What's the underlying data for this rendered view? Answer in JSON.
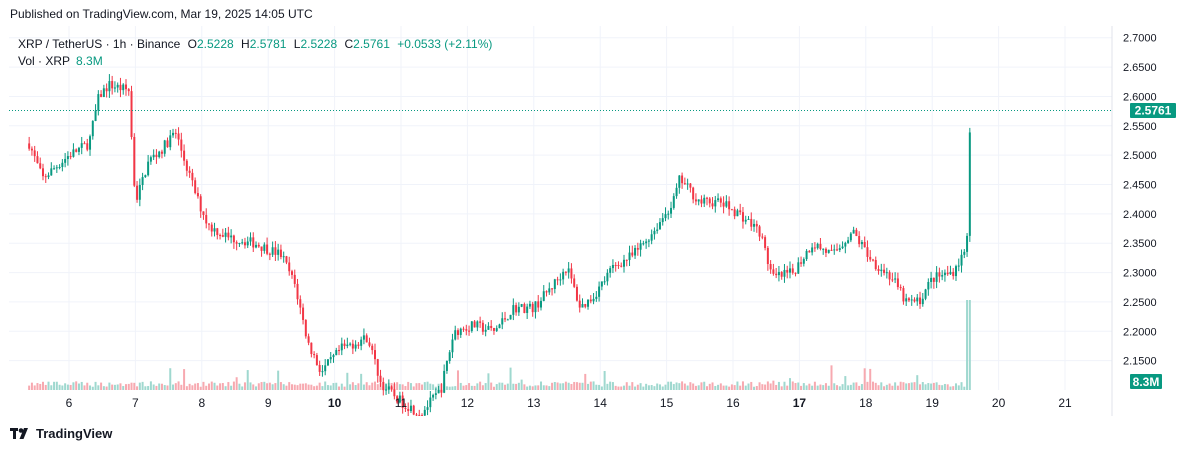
{
  "header": {
    "published": "Published on TradingView.com, Mar 19, 2025 14:05 UTC"
  },
  "legend": {
    "symbol": "XRP / TetherUS · 1h · Binance",
    "o_label": "O",
    "o_value": "2.5228",
    "h_label": "H",
    "h_value": "2.5781",
    "l_label": "L",
    "l_value": "2.5228",
    "c_label": "C",
    "c_value": "2.5761",
    "change": "+0.0533 (+2.11%)",
    "vol_label": "Vol · XRP",
    "vol_value": "8.3M"
  },
  "footer": {
    "brand": "TradingView"
  },
  "colors": {
    "up": "#089981",
    "down": "#f23645",
    "up_vol": "#9fd8cf",
    "down_vol": "#f7a9b0",
    "grid": "#f0f3fa",
    "text": "#131722"
  },
  "chart_data": {
    "type": "candlestick",
    "interval": "1h",
    "y_axis": {
      "side": "right",
      "min": 2.1,
      "max": 2.72,
      "ticks": [
        "2.1500",
        "2.2000",
        "2.2500",
        "2.3000",
        "2.3500",
        "2.4000",
        "2.4500",
        "2.5000",
        "2.5500",
        "2.6000",
        "2.6500",
        "2.7000"
      ]
    },
    "x_axis": {
      "ticks": [
        "6",
        "7",
        "8",
        "9",
        "10",
        "11",
        "12",
        "13",
        "14",
        "15",
        "16",
        "17",
        "18",
        "19",
        "20",
        "21"
      ],
      "bold_ticks": [
        "10",
        "17"
      ],
      "day_start": 5.4,
      "day_end": 21.7
    },
    "last_price": "2.5761",
    "last_volume": "8.3M",
    "price_path": [
      [
        5.4,
        2.52
      ],
      [
        5.6,
        2.46
      ],
      [
        5.8,
        2.48
      ],
      [
        6.0,
        2.5
      ],
      [
        6.3,
        2.52
      ],
      [
        6.45,
        2.6
      ],
      [
        6.6,
        2.62
      ],
      [
        6.9,
        2.61
      ],
      [
        7.0,
        2.42
      ],
      [
        7.2,
        2.49
      ],
      [
        7.4,
        2.51
      ],
      [
        7.6,
        2.54
      ],
      [
        7.8,
        2.47
      ],
      [
        7.95,
        2.42
      ],
      [
        8.1,
        2.38
      ],
      [
        8.4,
        2.36
      ],
      [
        8.8,
        2.35
      ],
      [
        9.2,
        2.33
      ],
      [
        9.4,
        2.28
      ],
      [
        9.6,
        2.18
      ],
      [
        9.8,
        2.13
      ],
      [
        10.1,
        2.17
      ],
      [
        10.5,
        2.19
      ],
      [
        10.7,
        2.11
      ],
      [
        11.0,
        2.08
      ],
      [
        11.3,
        2.06
      ],
      [
        11.6,
        2.1
      ],
      [
        11.8,
        2.2
      ],
      [
        12.1,
        2.21
      ],
      [
        12.4,
        2.2
      ],
      [
        12.7,
        2.24
      ],
      [
        13.0,
        2.24
      ],
      [
        13.3,
        2.28
      ],
      [
        13.5,
        2.31
      ],
      [
        13.7,
        2.24
      ],
      [
        13.9,
        2.26
      ],
      [
        14.2,
        2.31
      ],
      [
        14.5,
        2.33
      ],
      [
        14.8,
        2.37
      ],
      [
        15.1,
        2.42
      ],
      [
        15.2,
        2.46
      ],
      [
        15.5,
        2.42
      ],
      [
        15.8,
        2.42
      ],
      [
        16.1,
        2.4
      ],
      [
        16.4,
        2.37
      ],
      [
        16.6,
        2.29
      ],
      [
        16.9,
        2.3
      ],
      [
        17.2,
        2.35
      ],
      [
        17.5,
        2.33
      ],
      [
        17.8,
        2.37
      ],
      [
        18.1,
        2.32
      ],
      [
        18.4,
        2.29
      ],
      [
        18.6,
        2.25
      ],
      [
        18.8,
        2.25
      ],
      [
        19.0,
        2.29
      ],
      [
        19.3,
        2.3
      ],
      [
        19.52,
        2.34
      ],
      [
        19.56,
        2.52
      ],
      [
        19.58,
        2.5761
      ]
    ],
    "volume_max": 8.3,
    "volume_max_label": "8.3M"
  }
}
